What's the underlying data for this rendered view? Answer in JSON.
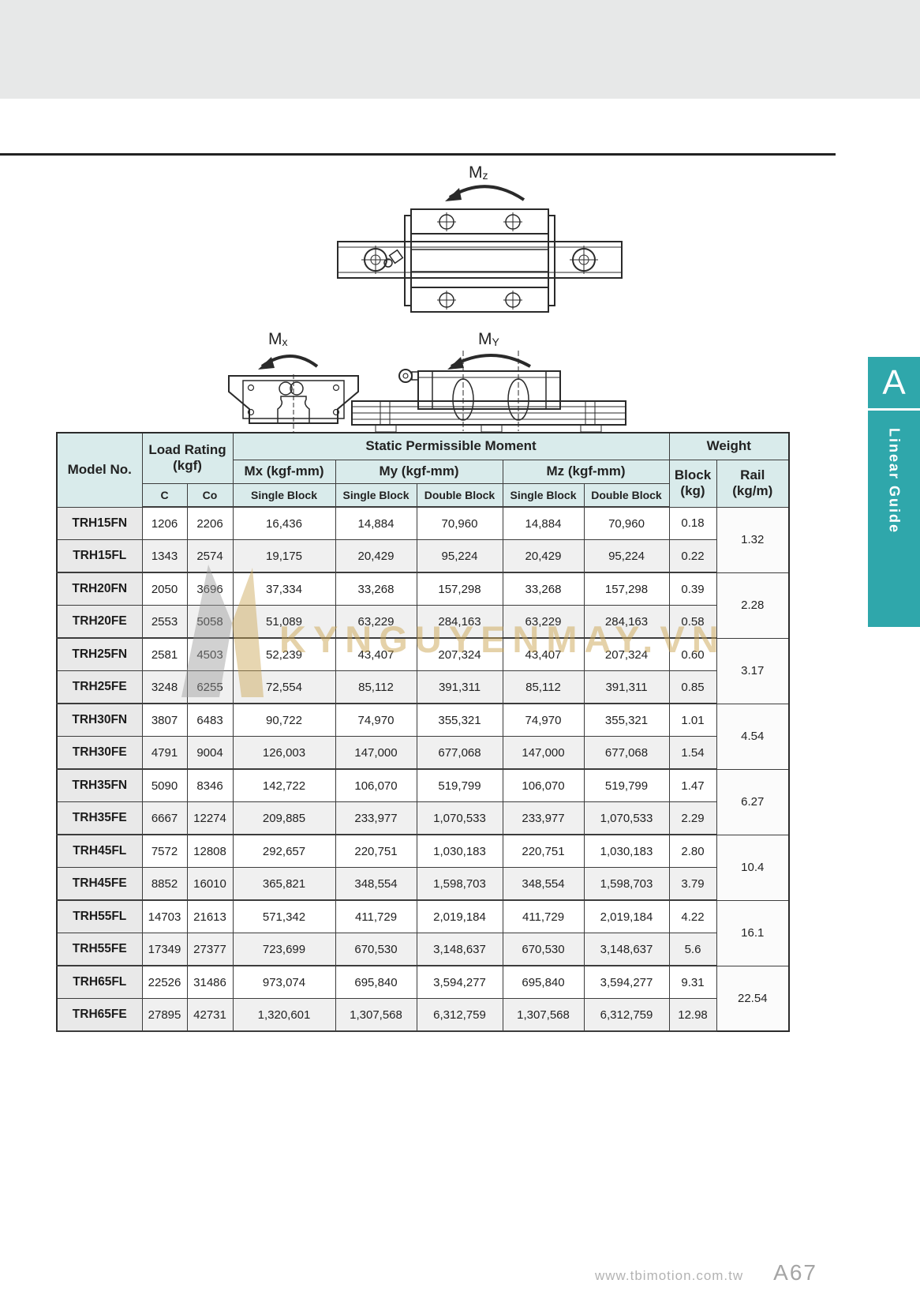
{
  "diagrams": {
    "mz": {
      "main": "M",
      "sub": "z"
    },
    "mx": {
      "main": "M",
      "sub": "x"
    },
    "my": {
      "main": "M",
      "sub": "Y"
    }
  },
  "sidebar_tab": {
    "letter": "A",
    "label": "Linear Guide",
    "color": "#2fa7ab"
  },
  "watermark": {
    "text": "KYNGUYENMAY.VN"
  },
  "footer": {
    "website": "www.tbimotion.com.tw",
    "page_number": "A67"
  },
  "table": {
    "headers": {
      "model_no": "Model No.",
      "load_rating_line1": "Load Rating",
      "load_rating_line2": "(kgf)",
      "static_moment": "Static Permissible Moment",
      "weight": "Weight",
      "mx": "Mx (kgf-mm)",
      "my": "My (kgf-mm)",
      "mz": "Mz (kgf-mm)",
      "c": "C",
      "co": "Co",
      "single_block": "Single Block",
      "double_block": "Double Block",
      "block_line1": "Block",
      "block_line2": "(kg)",
      "rail_line1": "Rail",
      "rail_line2": "(kg/m)"
    },
    "rows": [
      {
        "model": "TRH15FN",
        "c": "1206",
        "co": "2206",
        "mx_single": "16,436",
        "my_single": "14,884",
        "my_double": "70,960",
        "mz_single": "14,884",
        "mz_double": "70,960",
        "block_kg": "0.18"
      },
      {
        "model": "TRH15FL",
        "c": "1343",
        "co": "2574",
        "mx_single": "19,175",
        "my_single": "20,429",
        "my_double": "95,224",
        "mz_single": "20,429",
        "mz_double": "95,224",
        "block_kg": "0.22"
      },
      {
        "model": "TRH20FN",
        "c": "2050",
        "co": "3696",
        "mx_single": "37,334",
        "my_single": "33,268",
        "my_double": "157,298",
        "mz_single": "33,268",
        "mz_double": "157,298",
        "block_kg": "0.39"
      },
      {
        "model": "TRH20FE",
        "c": "2553",
        "co": "5058",
        "mx_single": "51,089",
        "my_single": "63,229",
        "my_double": "284,163",
        "mz_single": "63,229",
        "mz_double": "284,163",
        "block_kg": "0.58"
      },
      {
        "model": "TRH25FN",
        "c": "2581",
        "co": "4503",
        "mx_single": "52,239",
        "my_single": "43,407",
        "my_double": "207,324",
        "mz_single": "43,407",
        "mz_double": "207,324",
        "block_kg": "0.60"
      },
      {
        "model": "TRH25FE",
        "c": "3248",
        "co": "6255",
        "mx_single": "72,554",
        "my_single": "85,112",
        "my_double": "391,311",
        "mz_single": "85,112",
        "mz_double": "391,311",
        "block_kg": "0.85"
      },
      {
        "model": "TRH30FN",
        "c": "3807",
        "co": "6483",
        "mx_single": "90,722",
        "my_single": "74,970",
        "my_double": "355,321",
        "mz_single": "74,970",
        "mz_double": "355,321",
        "block_kg": "1.01"
      },
      {
        "model": "TRH30FE",
        "c": "4791",
        "co": "9004",
        "mx_single": "126,003",
        "my_single": "147,000",
        "my_double": "677,068",
        "mz_single": "147,000",
        "mz_double": "677,068",
        "block_kg": "1.54"
      },
      {
        "model": "TRH35FN",
        "c": "5090",
        "co": "8346",
        "mx_single": "142,722",
        "my_single": "106,070",
        "my_double": "519,799",
        "mz_single": "106,070",
        "mz_double": "519,799",
        "block_kg": "1.47"
      },
      {
        "model": "TRH35FE",
        "c": "6667",
        "co": "12274",
        "mx_single": "209,885",
        "my_single": "233,977",
        "my_double": "1,070,533",
        "mz_single": "233,977",
        "mz_double": "1,070,533",
        "block_kg": "2.29"
      },
      {
        "model": "TRH45FL",
        "c": "7572",
        "co": "12808",
        "mx_single": "292,657",
        "my_single": "220,751",
        "my_double": "1,030,183",
        "mz_single": "220,751",
        "mz_double": "1,030,183",
        "block_kg": "2.80"
      },
      {
        "model": "TRH45FE",
        "c": "8852",
        "co": "16010",
        "mx_single": "365,821",
        "my_single": "348,554",
        "my_double": "1,598,703",
        "mz_single": "348,554",
        "mz_double": "1,598,703",
        "block_kg": "3.79"
      },
      {
        "model": "TRH55FL",
        "c": "14703",
        "co": "21613",
        "mx_single": "571,342",
        "my_single": "411,729",
        "my_double": "2,019,184",
        "mz_single": "411,729",
        "mz_double": "2,019,184",
        "block_kg": "4.22"
      },
      {
        "model": "TRH55FE",
        "c": "17349",
        "co": "27377",
        "mx_single": "723,699",
        "my_single": "670,530",
        "my_double": "3,148,637",
        "mz_single": "670,530",
        "mz_double": "3,148,637",
        "block_kg": "5.6"
      },
      {
        "model": "TRH65FL",
        "c": "22526",
        "co": "31486",
        "mx_single": "973,074",
        "my_single": "695,840",
        "my_double": "3,594,277",
        "mz_single": "695,840",
        "mz_double": "3,594,277",
        "block_kg": "9.31"
      },
      {
        "model": "TRH65FE",
        "c": "27895",
        "co": "42731",
        "mx_single": "1,320,601",
        "my_single": "1,307,568",
        "my_double": "6,312,759",
        "mz_single": "1,307,568",
        "mz_double": "6,312,759",
        "block_kg": "12.98"
      }
    ],
    "rail_values": [
      "1.32",
      "2.28",
      "3.17",
      "4.54",
      "6.27",
      "10.4",
      "16.1",
      "22.54"
    ]
  }
}
